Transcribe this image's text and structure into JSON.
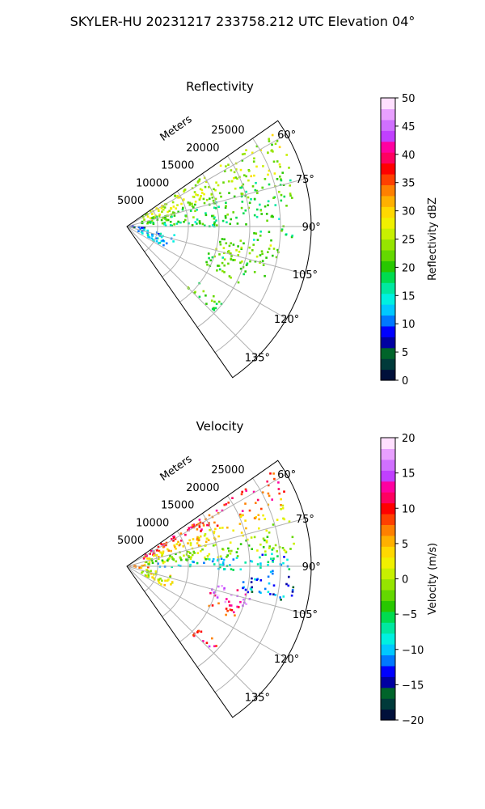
{
  "suptitle": "SKYLER-HU  20231217  233758.212 UTC Elevation 04°",
  "chart_data": [
    {
      "type": "heatmap",
      "title": "Reflectivity",
      "radial_label": "Meters",
      "radial_ticks": [
        {
          "value": 5000,
          "label": "5000"
        },
        {
          "value": 10000,
          "label": "10000"
        },
        {
          "value": 15000,
          "label": "15000"
        },
        {
          "value": 20000,
          "label": "20000"
        },
        {
          "value": 25000,
          "label": "25000"
        }
      ],
      "azimuth_ticks": [
        {
          "value": 60,
          "label": "60°"
        },
        {
          "value": 75,
          "label": "75°"
        },
        {
          "value": 90,
          "label": "90°"
        },
        {
          "value": 105,
          "label": "105°"
        },
        {
          "value": 120,
          "label": "120°"
        },
        {
          "value": 135,
          "label": "135°"
        }
      ],
      "azimuth_range": [
        55,
        145
      ],
      "range_max_m": 30000,
      "colorbar": {
        "label": "Reflectivity dBZ",
        "min": 0,
        "max": 50,
        "ticks": [
          {
            "value": 0,
            "label": "0"
          },
          {
            "value": 5,
            "label": "5"
          },
          {
            "value": 10,
            "label": "10"
          },
          {
            "value": 15,
            "label": "15"
          },
          {
            "value": 20,
            "label": "20"
          },
          {
            "value": 25,
            "label": "25"
          },
          {
            "value": 30,
            "label": "30"
          },
          {
            "value": 35,
            "label": "35"
          },
          {
            "value": 40,
            "label": "40"
          },
          {
            "value": 45,
            "label": "45"
          },
          {
            "value": 50,
            "label": "50"
          }
        ],
        "colors": [
          "#00103a",
          "#003a3a",
          "#00642a",
          "#0000a0",
          "#0000ff",
          "#0078ff",
          "#00c8ff",
          "#00f0e0",
          "#00e8a0",
          "#00dc50",
          "#28c800",
          "#64d800",
          "#96e400",
          "#c8f000",
          "#f0f000",
          "#ffd800",
          "#ffb000",
          "#ff8000",
          "#ff4000",
          "#ff0000",
          "#ff0060",
          "#ff00a0",
          "#c040ff",
          "#d070ff",
          "#e8a0ff",
          "#ffe0ff"
        ]
      },
      "echoes": [
        {
          "az": [
            57,
            71
          ],
          "r": [
            3000,
            28500
          ],
          "value": 25,
          "note": "band"
        },
        {
          "az": [
            71,
            85
          ],
          "r": [
            2500,
            28000
          ],
          "value": 20
        },
        {
          "az": [
            85,
            90
          ],
          "r": [
            6000,
            26000
          ],
          "value": 19
        },
        {
          "az": [
            91,
            96
          ],
          "r": [
            20000,
            27000
          ],
          "value": 18
        },
        {
          "az": [
            97,
            110
          ],
          "r": [
            15000,
            26000
          ],
          "value": 23
        },
        {
          "az": [
            107,
            117
          ],
          "r": [
            14000,
            21000
          ],
          "value": 21
        },
        {
          "az": [
            86,
            98
          ],
          "r": [
            300,
            3500
          ],
          "value": 9
        },
        {
          "az": [
            100,
            118
          ],
          "r": [
            2000,
            8000
          ],
          "value": 13
        },
        {
          "az": [
            128,
            136
          ],
          "r": [
            14000,
            20000
          ],
          "value": 20
        }
      ]
    },
    {
      "type": "heatmap",
      "title": "Velocity",
      "radial_label": "Meters",
      "radial_ticks": [
        {
          "value": 5000,
          "label": "5000"
        },
        {
          "value": 10000,
          "label": "10000"
        },
        {
          "value": 15000,
          "label": "15000"
        },
        {
          "value": 20000,
          "label": "20000"
        },
        {
          "value": 25000,
          "label": "25000"
        }
      ],
      "azimuth_ticks": [
        {
          "value": 60,
          "label": "60°"
        },
        {
          "value": 75,
          "label": "75°"
        },
        {
          "value": 90,
          "label": "90°"
        },
        {
          "value": 105,
          "label": "105°"
        },
        {
          "value": 120,
          "label": "120°"
        },
        {
          "value": 135,
          "label": "135°"
        }
      ],
      "azimuth_range": [
        55,
        145
      ],
      "range_max_m": 30000,
      "colorbar": {
        "label": "Velocity (m/s)",
        "min": -20,
        "max": 20,
        "ticks": [
          {
            "value": -20,
            "label": "−20"
          },
          {
            "value": -15,
            "label": "−15"
          },
          {
            "value": -10,
            "label": "−10"
          },
          {
            "value": -5,
            "label": "−5"
          },
          {
            "value": 0,
            "label": "0"
          },
          {
            "value": 5,
            "label": "5"
          },
          {
            "value": 10,
            "label": "10"
          },
          {
            "value": 15,
            "label": "15"
          },
          {
            "value": 20,
            "label": "20"
          }
        ],
        "colors": [
          "#00103a",
          "#003a3a",
          "#00642a",
          "#0000a0",
          "#0000ff",
          "#0078ff",
          "#00c8ff",
          "#00f0e0",
          "#00e8a0",
          "#00dc50",
          "#28c800",
          "#64d800",
          "#96e400",
          "#c8f000",
          "#f0f000",
          "#ffd800",
          "#ffb000",
          "#ff8000",
          "#ff4000",
          "#ff0000",
          "#ff0060",
          "#ff00a0",
          "#c040ff",
          "#d070ff",
          "#e8a0ff",
          "#ffe0ff"
        ]
      },
      "echoes": [
        {
          "az": [
            57,
            66
          ],
          "r": [
            3000,
            28500
          ],
          "value": 10
        },
        {
          "az": [
            66,
            74
          ],
          "r": [
            3000,
            28000
          ],
          "value": 4
        },
        {
          "az": [
            74,
            85
          ],
          "r": [
            3000,
            27500
          ],
          "value": -1
        },
        {
          "az": [
            85,
            92
          ],
          "r": [
            5000,
            27000
          ],
          "value": -9
        },
        {
          "az": [
            92,
            103
          ],
          "r": [
            19000,
            27500
          ],
          "value": -12
        },
        {
          "az": [
            101,
            110
          ],
          "r": [
            14000,
            21000
          ],
          "value": 15
        },
        {
          "az": [
            110,
            117
          ],
          "r": [
            14500,
            19500
          ],
          "value": 10
        },
        {
          "az": [
            86,
            98
          ],
          "r": [
            300,
            3500
          ],
          "value": 6
        },
        {
          "az": [
            100,
            118
          ],
          "r": [
            2500,
            8000
          ],
          "value": 1
        },
        {
          "az": [
            129,
            136
          ],
          "r": [
            15000,
            19500
          ],
          "value": 10
        }
      ]
    }
  ]
}
